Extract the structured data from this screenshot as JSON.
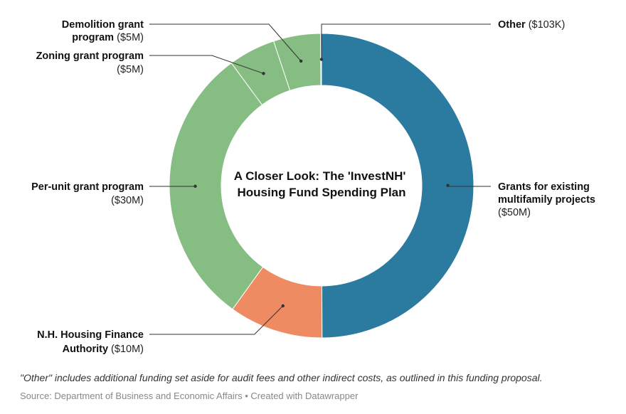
{
  "chart_data": {
    "type": "pie",
    "variant": "donut",
    "title": "A Closer Look: The 'InvestNH' Housing Fund Spending Plan",
    "title_lines": [
      "A Closer Look: The 'InvestNH'",
      "Housing Fund Spending Plan"
    ],
    "unit": "USD (millions)",
    "slices": [
      {
        "name": "Grants for existing multifamily projects",
        "value": 50,
        "display": "$50M",
        "color": "#2b7ba0",
        "label_lines": [
          "Grants for existing",
          "multifamily projects"
        ],
        "label_value_inline": false
      },
      {
        "name": "N.H. Housing Finance Authority",
        "value": 10,
        "display": "$10M",
        "color": "#ef8b63",
        "label_lines": [
          "N.H. Housing Finance",
          "Authority"
        ],
        "label_value_inline": true
      },
      {
        "name": "Per-unit grant program",
        "value": 30,
        "display": "$30M",
        "color": "#86bd82",
        "label_lines": [
          "Per-unit grant program"
        ],
        "label_value_inline": false
      },
      {
        "name": "Zoning grant program",
        "value": 5,
        "display": "$5M",
        "color": "#86bd82",
        "label_lines": [
          "Zoning grant program"
        ],
        "label_value_inline": false
      },
      {
        "name": "Demolition grant program",
        "value": 5,
        "display": "$5M",
        "color": "#86bd82",
        "label_lines": [
          "Demolition grant",
          "program"
        ],
        "label_value_inline": true
      },
      {
        "name": "Other",
        "value": 0.103,
        "display": "$103K",
        "color": "#86bd82",
        "label_lines": [
          "Other"
        ],
        "label_value_inline": true
      }
    ]
  },
  "note": "\"Other\" includes additional funding set aside for audit fees and other indirect costs, as outlined in this funding proposal.",
  "source": "Source: Department of Business and Economic Affairs • Created with Datawrapper"
}
